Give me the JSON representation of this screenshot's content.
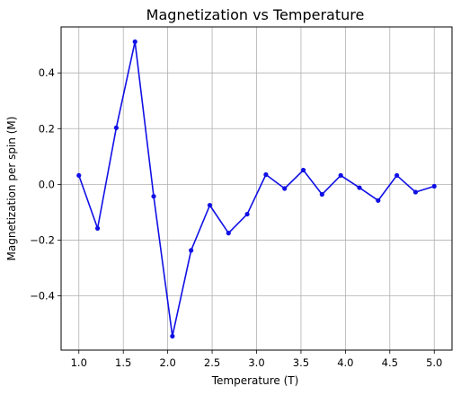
{
  "chart_data": {
    "type": "line",
    "title": "Magnetization vs Temperature",
    "xlabel": "Temperature (T)",
    "ylabel": "Magnetization per spin (M)",
    "xlim": [
      0.8,
      5.2
    ],
    "ylim": [
      -0.595,
      0.565
    ],
    "xticks": [
      1.0,
      1.5,
      2.0,
      2.5,
      3.0,
      3.5,
      4.0,
      4.5,
      5.0
    ],
    "xtick_labels": [
      "1.0",
      "1.5",
      "2.0",
      "2.5",
      "3.0",
      "3.5",
      "4.0",
      "4.5",
      "5.0"
    ],
    "yticks": [
      -0.4,
      -0.2,
      0.0,
      0.2,
      0.4
    ],
    "ytick_labels": [
      "−0.4",
      "−0.2",
      "0.0",
      "0.2",
      "0.4"
    ],
    "grid": true,
    "series": [
      {
        "color": "#1010e6",
        "marker": "circle",
        "x": [
          1.0,
          1.2105,
          1.4211,
          1.6316,
          1.8421,
          2.0526,
          2.2632,
          2.4737,
          2.6842,
          2.8947,
          3.1053,
          3.3158,
          3.5263,
          3.7368,
          3.9474,
          4.1579,
          4.3684,
          4.5789,
          4.7895,
          5.0
        ],
        "y": [
          0.032,
          -0.158,
          0.203,
          0.512,
          -0.043,
          -0.545,
          -0.237,
          -0.075,
          -0.175,
          -0.107,
          0.035,
          -0.015,
          0.051,
          -0.036,
          0.032,
          -0.012,
          -0.058,
          0.032,
          -0.028,
          -0.007
        ]
      }
    ]
  }
}
